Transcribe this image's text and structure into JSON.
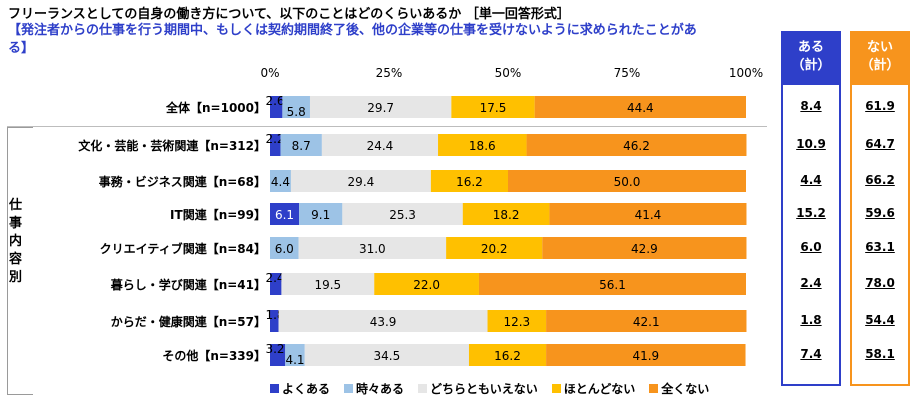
{
  "title_line1": "フリーランスとしての自身の働き方について、以下のことはどのくらいあるか ［単一回答形式］",
  "title_line2": "【発注者からの仕事を行う期間中、もしくは契約期間終了後、他の企業等の仕事を受けないように求められたことがある】",
  "group_label": [
    "仕",
    "事",
    "内",
    "容",
    "別"
  ],
  "summary": {
    "aru_label": [
      "ある",
      "（計）"
    ],
    "nai_label": [
      "ない",
      "（計）"
    ],
    "aru_color": "#2e3fc9",
    "nai_color": "#f7941d"
  },
  "colors": {
    "よくある": "#2e3fc9",
    "時々ある": "#9dc3e6",
    "どちらともいえない": "#e6e6e6",
    "ほとんどない": "#ffc000",
    "全くない": "#f7941d"
  },
  "chart_data": {
    "type": "bar",
    "orientation": "horizontal-stacked-100",
    "xlim": [
      0,
      100
    ],
    "ticks": [
      "0%",
      "25%",
      "50%",
      "75%",
      "100%"
    ],
    "categories": [
      "全体【n=1000】",
      "文化・芸能・芸術関連【n=312】",
      "事務・ビジネス関連【n=68】",
      "IT関連【n=99】",
      "クリエイティブ関連【n=84】",
      "暮らし・学び関連【n=41】",
      "からだ・健康関連【n=57】",
      "その他【n=339】"
    ],
    "series": [
      {
        "name": "よくある",
        "values": [
          2.6,
          2.2,
          0.0,
          6.1,
          0.0,
          2.4,
          1.8,
          3.2
        ]
      },
      {
        "name": "時々ある",
        "values": [
          5.8,
          8.7,
          4.4,
          9.1,
          6.0,
          0.0,
          0.0,
          4.1
        ]
      },
      {
        "name": "どちらともいえない",
        "values": [
          29.7,
          24.4,
          29.4,
          25.3,
          31.0,
          19.5,
          43.9,
          34.5
        ]
      },
      {
        "name": "ほとんどない",
        "values": [
          17.5,
          18.6,
          16.2,
          18.2,
          20.2,
          22.0,
          12.3,
          16.2
        ]
      },
      {
        "name": "全くない",
        "values": [
          44.4,
          46.2,
          50.0,
          41.4,
          42.9,
          56.1,
          42.1,
          41.9
        ]
      }
    ],
    "data_labels": [
      [
        "2.6",
        "5.8",
        "29.7",
        "17.5",
        "44.4"
      ],
      [
        "2.2",
        "8.7",
        "24.4",
        "18.6",
        "46.2"
      ],
      [
        "",
        "4.4",
        "29.4",
        "16.2",
        "50.0"
      ],
      [
        "6.1",
        "9.1",
        "25.3",
        "18.2",
        "41.4"
      ],
      [
        "",
        "6.0",
        "31.0",
        "20.2",
        "42.9"
      ],
      [
        "2.4",
        "",
        "19.5",
        "22.0",
        "56.1"
      ],
      [
        "1.8",
        "",
        "43.9",
        "12.3",
        "42.1"
      ],
      [
        "3.2",
        "4.1",
        "34.5",
        "16.2",
        "41.9"
      ]
    ],
    "aru_total": [
      "8.4",
      "10.9",
      "4.4",
      "15.2",
      "6.0",
      "2.4",
      "1.8",
      "7.4"
    ],
    "nai_total": [
      "61.9",
      "64.7",
      "66.2",
      "59.6",
      "63.1",
      "78.0",
      "54.4",
      "58.1"
    ]
  }
}
